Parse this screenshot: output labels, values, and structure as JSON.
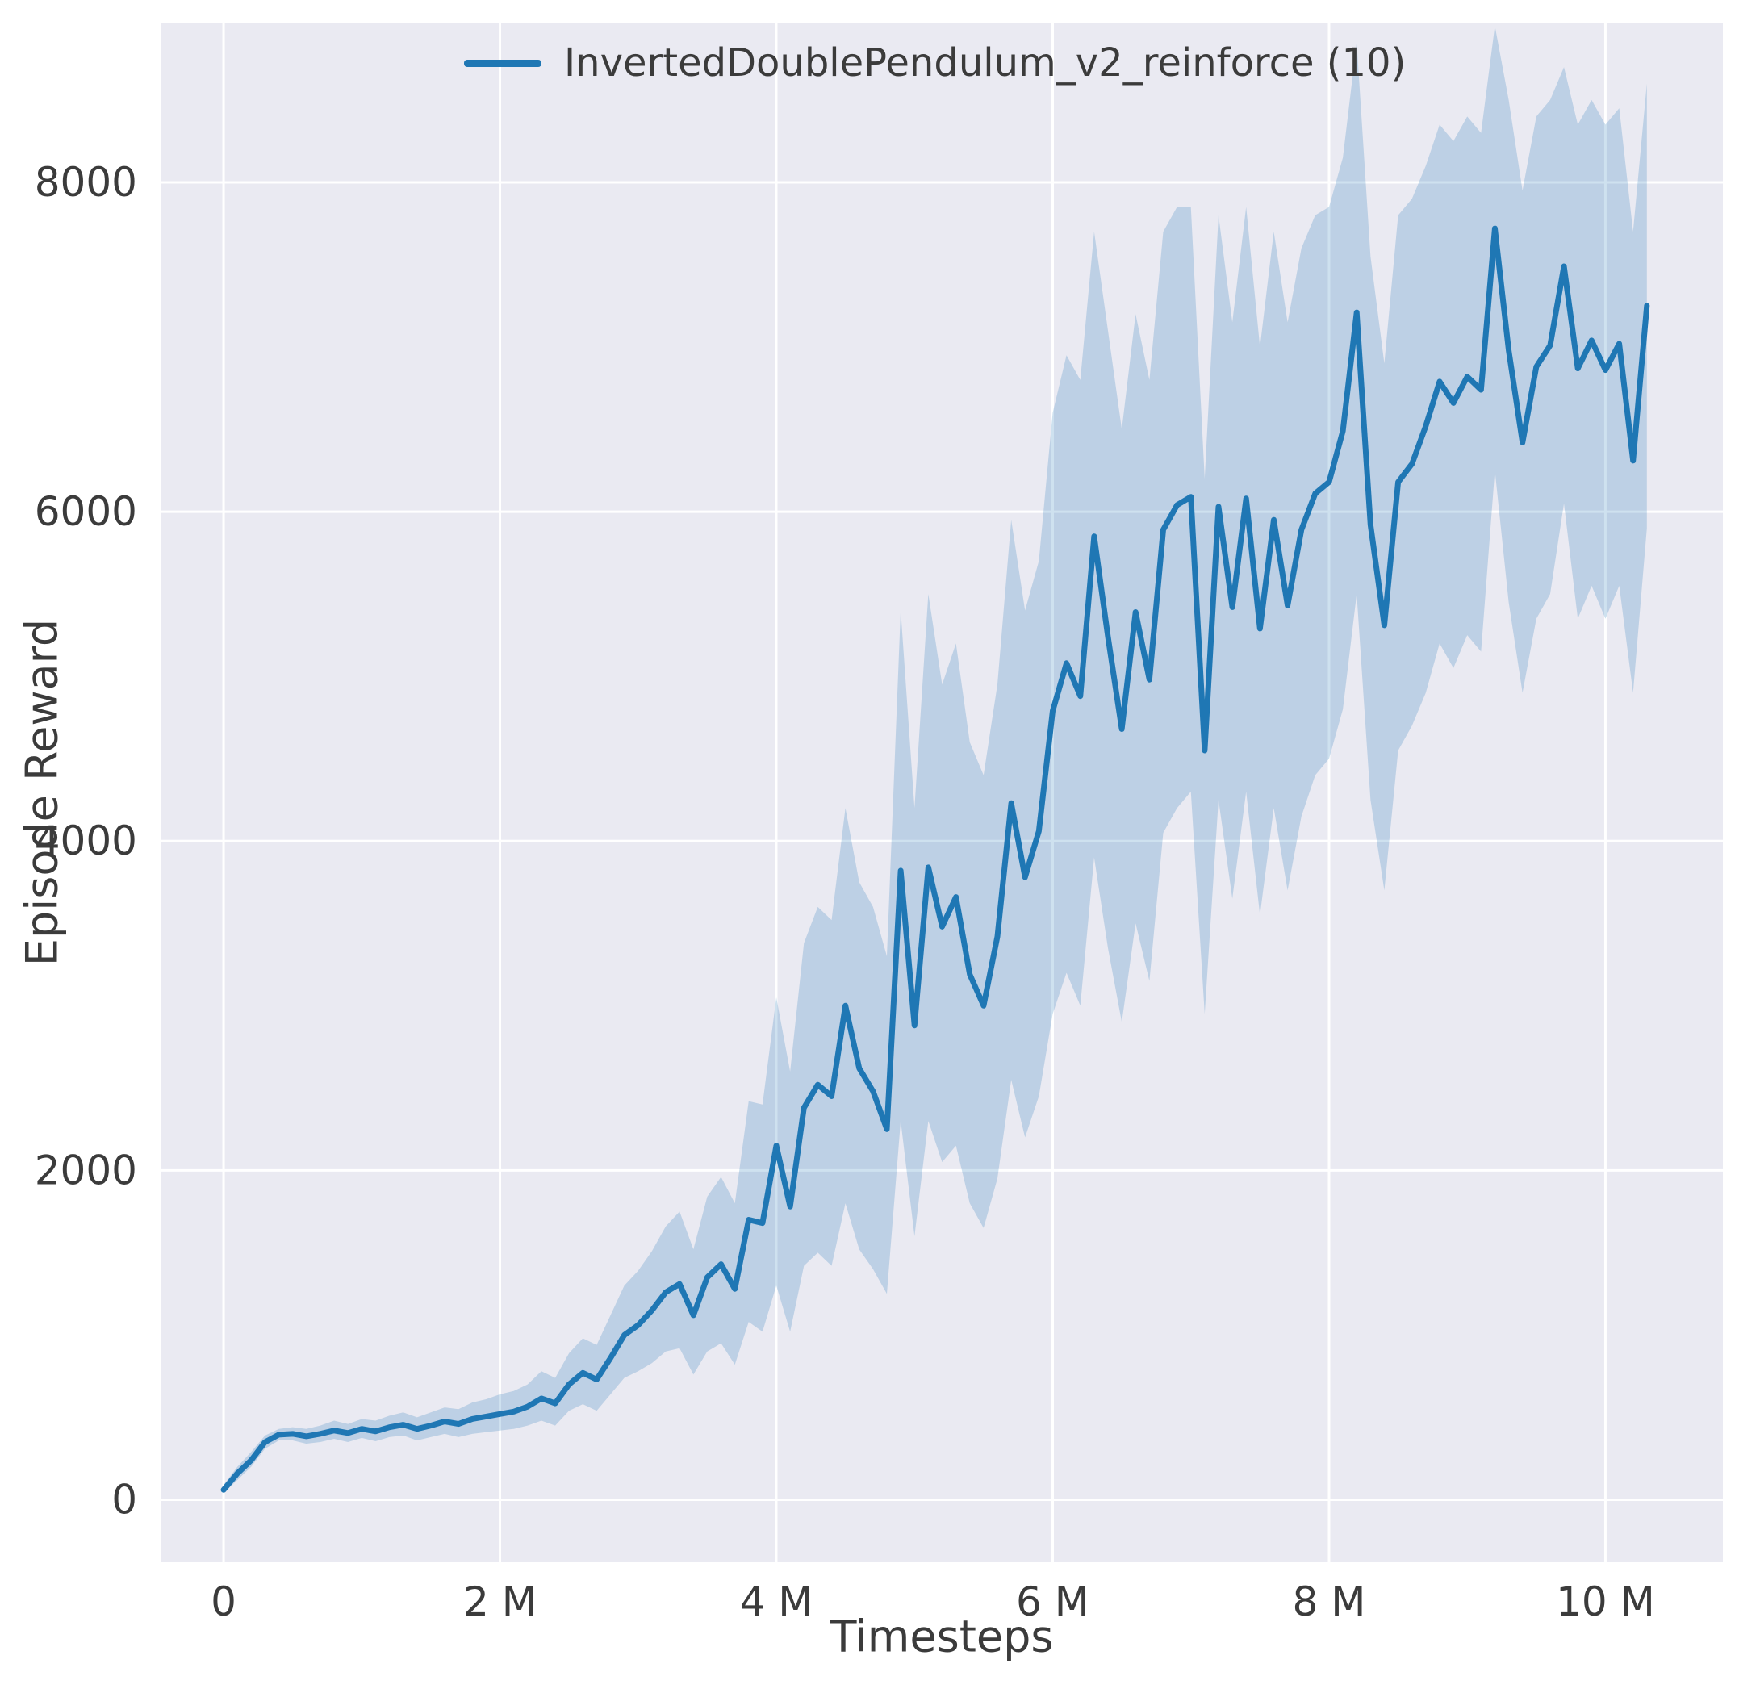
{
  "figure": {
    "background": "#ffffff",
    "axes_background": "#eaeaf2",
    "grid_color": "#ffffff",
    "text_color": "#3b3b3b"
  },
  "axes": {
    "xlabel": "Timesteps",
    "ylabel": "Episode Reward"
  },
  "legend": {
    "label": "InvertedDoublePendulum_v2_reinforce (10)",
    "line_color": "#1f77b4"
  },
  "chart_data": {
    "type": "line",
    "title": "",
    "xlabel": "Timesteps",
    "ylabel": "Episode Reward",
    "legend": [
      "InvertedDoublePendulum_v2_reinforce (10)"
    ],
    "legend_position": "upper center",
    "grid": true,
    "x_unit": "millions of timesteps",
    "xlim": [
      -0.45,
      10.85
    ],
    "ylim": [
      -380,
      8970
    ],
    "xticks": {
      "values": [
        0,
        2,
        4,
        6,
        8,
        10
      ],
      "labels": [
        "0",
        "2 M",
        "4 M",
        "6 M",
        "8 M",
        "10 M"
      ]
    },
    "yticks": {
      "values": [
        0,
        2000,
        4000,
        6000,
        8000
      ],
      "labels": [
        "0",
        "2000",
        "4000",
        "6000",
        "8000"
      ]
    },
    "series": [
      {
        "name": "InvertedDoublePendulum_v2_reinforce (10)",
        "color": "#1f77b4",
        "band_color": "#1f77b4",
        "band_opacity": 0.22,
        "x": [
          0.0,
          0.1,
          0.2,
          0.3,
          0.4,
          0.5,
          0.6,
          0.7,
          0.8,
          0.9,
          1.0,
          1.1,
          1.2,
          1.3,
          1.4,
          1.5,
          1.6,
          1.7,
          1.8,
          1.9,
          2.0,
          2.1,
          2.2,
          2.3,
          2.4,
          2.5,
          2.6,
          2.7,
          2.8,
          2.9,
          3.0,
          3.1,
          3.2,
          3.3,
          3.4,
          3.5,
          3.6,
          3.7,
          3.8,
          3.9,
          4.0,
          4.1,
          4.2,
          4.3,
          4.4,
          4.5,
          4.6,
          4.7,
          4.8,
          4.9,
          5.0,
          5.1,
          5.2,
          5.3,
          5.4,
          5.5,
          5.6,
          5.7,
          5.8,
          5.9,
          6.0,
          6.1,
          6.2,
          6.3,
          6.4,
          6.5,
          6.6,
          6.7,
          6.8,
          6.9,
          7.0,
          7.1,
          7.2,
          7.3,
          7.4,
          7.5,
          7.6,
          7.7,
          7.8,
          7.9,
          8.0,
          8.1,
          8.2,
          8.3,
          8.4,
          8.5,
          8.6,
          8.7,
          8.8,
          8.9,
          9.0,
          9.1,
          9.2,
          9.3,
          9.4,
          9.5,
          9.6,
          9.7,
          9.8,
          9.9,
          10.0,
          10.1,
          10.2,
          10.3
        ],
        "mean": [
          60,
          160,
          240,
          350,
          395,
          400,
          385,
          400,
          420,
          405,
          430,
          415,
          440,
          455,
          430,
          450,
          475,
          460,
          490,
          505,
          520,
          535,
          565,
          615,
          585,
          700,
          770,
          730,
          860,
          1000,
          1060,
          1150,
          1260,
          1310,
          1120,
          1350,
          1430,
          1280,
          1700,
          1680,
          2150,
          1780,
          2380,
          2520,
          2450,
          3000,
          2620,
          2480,
          2250,
          3820,
          2880,
          3840,
          3480,
          3660,
          3190,
          3000,
          3420,
          4230,
          3780,
          4060,
          4790,
          5080,
          4880,
          5850,
          5240,
          4680,
          5390,
          4980,
          5890,
          6040,
          6090,
          4550,
          6030,
          5420,
          6080,
          5290,
          5950,
          5430,
          5890,
          6110,
          6180,
          6490,
          7210,
          5920,
          5310,
          6180,
          6290,
          6520,
          6790,
          6660,
          6820,
          6740,
          7720,
          6980,
          6420,
          6880,
          7010,
          7490,
          6870,
          7040,
          6860,
          7020,
          6310,
          7250
        ],
        "lower": [
          40,
          120,
          200,
          310,
          360,
          360,
          340,
          350,
          370,
          350,
          375,
          355,
          380,
          390,
          360,
          380,
          400,
          380,
          400,
          410,
          420,
          430,
          450,
          480,
          450,
          540,
          580,
          540,
          640,
          740,
          780,
          830,
          900,
          920,
          760,
          900,
          950,
          820,
          1080,
          1020,
          1300,
          1020,
          1420,
          1500,
          1420,
          1800,
          1520,
          1400,
          1250,
          2300,
          1600,
          2300,
          2050,
          2150,
          1800,
          1650,
          1950,
          2550,
          2200,
          2450,
          2950,
          3200,
          3000,
          3900,
          3350,
          2900,
          3500,
          3150,
          4050,
          4200,
          4300,
          2950,
          4250,
          3650,
          4300,
          3550,
          4200,
          3700,
          4150,
          4400,
          4500,
          4800,
          5500,
          4250,
          3700,
          4550,
          4700,
          4900,
          5200,
          5050,
          5250,
          5150,
          6250,
          5450,
          4900,
          5350,
          5500,
          6050,
          5350,
          5550,
          5350,
          5550,
          4900,
          5900
        ],
        "upper": [
          90,
          200,
          290,
          390,
          430,
          440,
          430,
          450,
          480,
          460,
          490,
          480,
          510,
          530,
          500,
          530,
          560,
          550,
          590,
          610,
          640,
          660,
          700,
          780,
          740,
          890,
          980,
          940,
          1120,
          1300,
          1390,
          1510,
          1660,
          1750,
          1520,
          1840,
          1960,
          1800,
          2420,
          2400,
          3050,
          2600,
          3380,
          3600,
          3520,
          4200,
          3750,
          3600,
          3300,
          5400,
          4200,
          5500,
          4950,
          5200,
          4600,
          4400,
          4950,
          5950,
          5400,
          5700,
          6600,
          6950,
          6800,
          7700,
          7100,
          6500,
          7200,
          6800,
          7700,
          7850,
          7850,
          6200,
          7800,
          7150,
          7850,
          7000,
          7700,
          7150,
          7600,
          7800,
          7850,
          8150,
          8850,
          7550,
          6900,
          7800,
          7900,
          8100,
          8350,
          8250,
          8400,
          8300,
          8950,
          8500,
          7950,
          8400,
          8500,
          8700,
          8350,
          8500,
          8350,
          8450,
          7700,
          8600
        ]
      }
    ]
  }
}
